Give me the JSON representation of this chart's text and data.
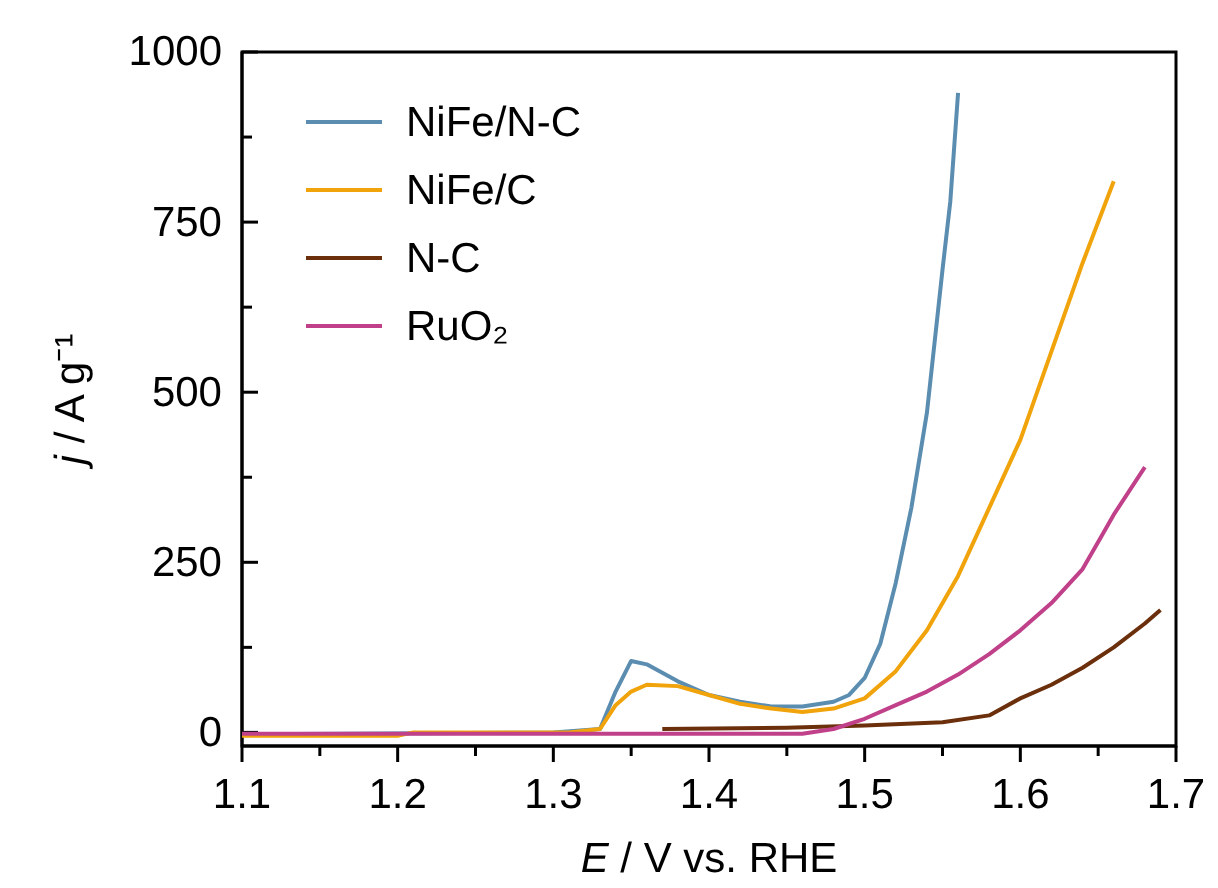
{
  "chart_data": {
    "type": "line",
    "xlabel": "E / V vs. RHE",
    "ylabel": "j / A g⁻¹",
    "xlim": [
      1.1,
      1.7
    ],
    "ylim": [
      -20,
      1000
    ],
    "xticks": [
      1.1,
      {
        "value": 1.15,
        "label": null
      },
      1.2,
      {
        "value": 1.25,
        "label": null
      },
      1.3,
      {
        "value": 1.35,
        "label": null
      },
      1.4,
      {
        "value": 1.45,
        "label": null
      },
      1.5,
      {
        "value": 1.55,
        "label": null
      },
      1.6,
      {
        "value": 1.65,
        "label": null
      },
      1.7
    ],
    "yticks": [
      0,
      {
        "value": 125,
        "label": null
      },
      250,
      {
        "value": 375,
        "label": null
      },
      500,
      {
        "value": 625,
        "label": null
      },
      750,
      {
        "value": 875,
        "label": null
      },
      1000
    ],
    "legend": "top left",
    "grid": false,
    "line_style": "solid",
    "marker": "none",
    "series": [
      {
        "name": "NiFe/N-C",
        "color": "#5b8db0",
        "x": [
          1.1,
          1.3,
          1.33,
          1.34,
          1.35,
          1.36,
          1.38,
          1.4,
          1.42,
          1.44,
          1.46,
          1.48,
          1.49,
          1.5,
          1.51,
          1.52,
          1.53,
          1.54,
          1.55,
          1.555,
          1.56
        ],
        "values": [
          -3,
          0,
          5,
          60,
          105,
          100,
          75,
          55,
          45,
          38,
          38,
          45,
          55,
          80,
          130,
          220,
          330,
          470,
          680,
          780,
          940
        ]
      },
      {
        "name": "NiFe/C",
        "color": "#f0a30a",
        "x": [
          1.1,
          1.2,
          1.21,
          1.31,
          1.33,
          1.34,
          1.35,
          1.36,
          1.38,
          1.4,
          1.42,
          1.44,
          1.46,
          1.48,
          1.5,
          1.52,
          1.54,
          1.56,
          1.58,
          1.6,
          1.62,
          1.64,
          1.66
        ],
        "values": [
          -5,
          -5,
          0,
          0,
          5,
          40,
          60,
          70,
          68,
          55,
          42,
          35,
          30,
          35,
          50,
          90,
          150,
          230,
          330,
          430,
          560,
          690,
          810
        ]
      },
      {
        "name": "N-C",
        "color": "#6b2f0c",
        "x": [
          1.37,
          1.45,
          1.5,
          1.55,
          1.58,
          1.6,
          1.62,
          1.64,
          1.66,
          1.68,
          1.69
        ],
        "values": [
          5,
          7,
          10,
          15,
          25,
          50,
          70,
          95,
          125,
          160,
          180
        ]
      },
      {
        "name": "RuO₂",
        "color": "#c0418a",
        "x": [
          1.1,
          1.46,
          1.48,
          1.5,
          1.52,
          1.54,
          1.56,
          1.58,
          1.6,
          1.62,
          1.64,
          1.65,
          1.66,
          1.67,
          1.68
        ],
        "values": [
          -2,
          -2,
          5,
          20,
          40,
          60,
          85,
          115,
          150,
          190,
          240,
          280,
          320,
          355,
          390
        ]
      }
    ]
  }
}
